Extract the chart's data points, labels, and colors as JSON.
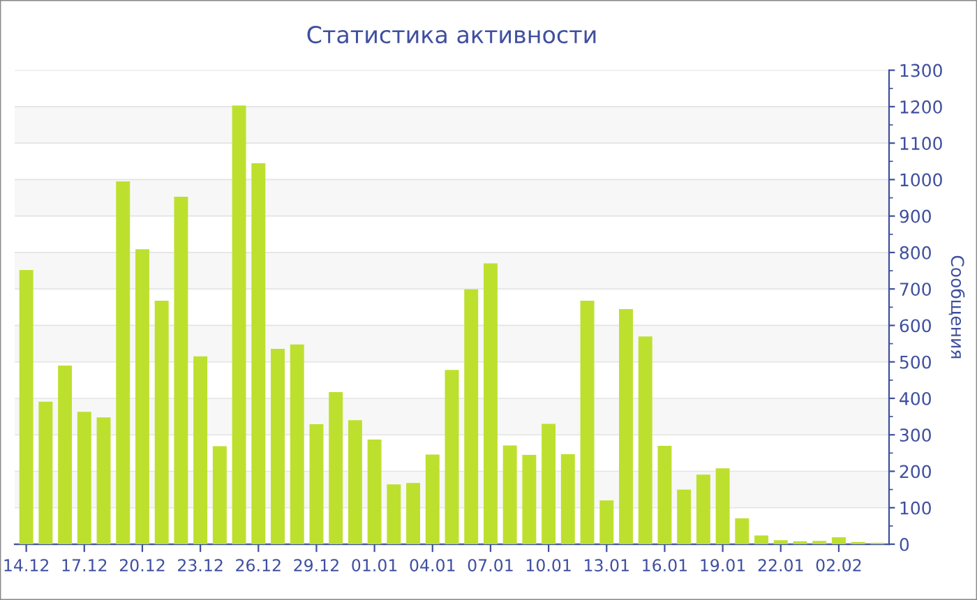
{
  "chart_data": {
    "type": "bar",
    "title": "Статистика активности",
    "ylabel": "Сообщения",
    "categories": [
      "14.12",
      null,
      null,
      "17.12",
      null,
      null,
      "20.12",
      null,
      null,
      "23.12",
      null,
      null,
      "26.12",
      null,
      null,
      "29.12",
      null,
      null,
      "01.01",
      null,
      null,
      "04.01",
      null,
      null,
      "07.01",
      null,
      null,
      "10.01",
      null,
      null,
      "13.01",
      null,
      null,
      "16.01",
      null,
      null,
      "19.01",
      null,
      null,
      "22.01",
      null,
      null,
      "02.02",
      null,
      null
    ],
    "values": [
      752,
      391,
      490,
      363,
      348,
      995,
      809,
      668,
      953,
      515,
      269,
      1203,
      1045,
      536,
      548,
      329,
      417,
      340,
      287,
      164,
      168,
      246,
      478,
      699,
      770,
      271,
      245,
      330,
      247,
      668,
      120,
      645,
      570,
      270,
      150,
      191,
      208,
      71,
      24,
      11,
      8,
      9,
      19,
      6,
      4
    ],
    "color": "#bde02f",
    "ylim": [
      0,
      1300
    ],
    "yticks": [
      0,
      100,
      200,
      300,
      400,
      500,
      600,
      700,
      800,
      900,
      1000,
      1100,
      1200,
      1300
    ],
    "grid": "y",
    "legend": false
  }
}
